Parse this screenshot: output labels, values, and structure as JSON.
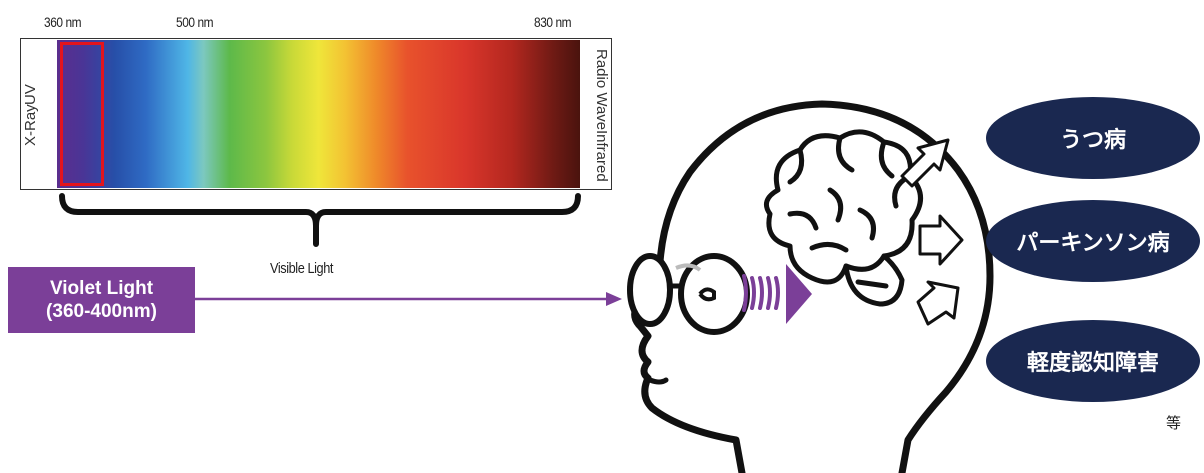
{
  "spectrum": {
    "wavelength_labels": [
      "360 nm",
      "500 nm",
      "830 nm"
    ],
    "left_labels": [
      "UV",
      "X-Ray"
    ],
    "right_labels": [
      "Radio Wave",
      "Infrared"
    ],
    "bracket_label": "Visible Light"
  },
  "violet_light": {
    "line1": "Violet Light",
    "line2": "(360-400nm)",
    "color": "#7b3f98"
  },
  "outcomes": [
    "うつ病",
    "パーキンソン病",
    "軽度認知障害"
  ],
  "outcomes_suffix": "等",
  "colors": {
    "pill": "#1a2850",
    "highlight": "#e3141d",
    "violet": "#7b3f98"
  }
}
